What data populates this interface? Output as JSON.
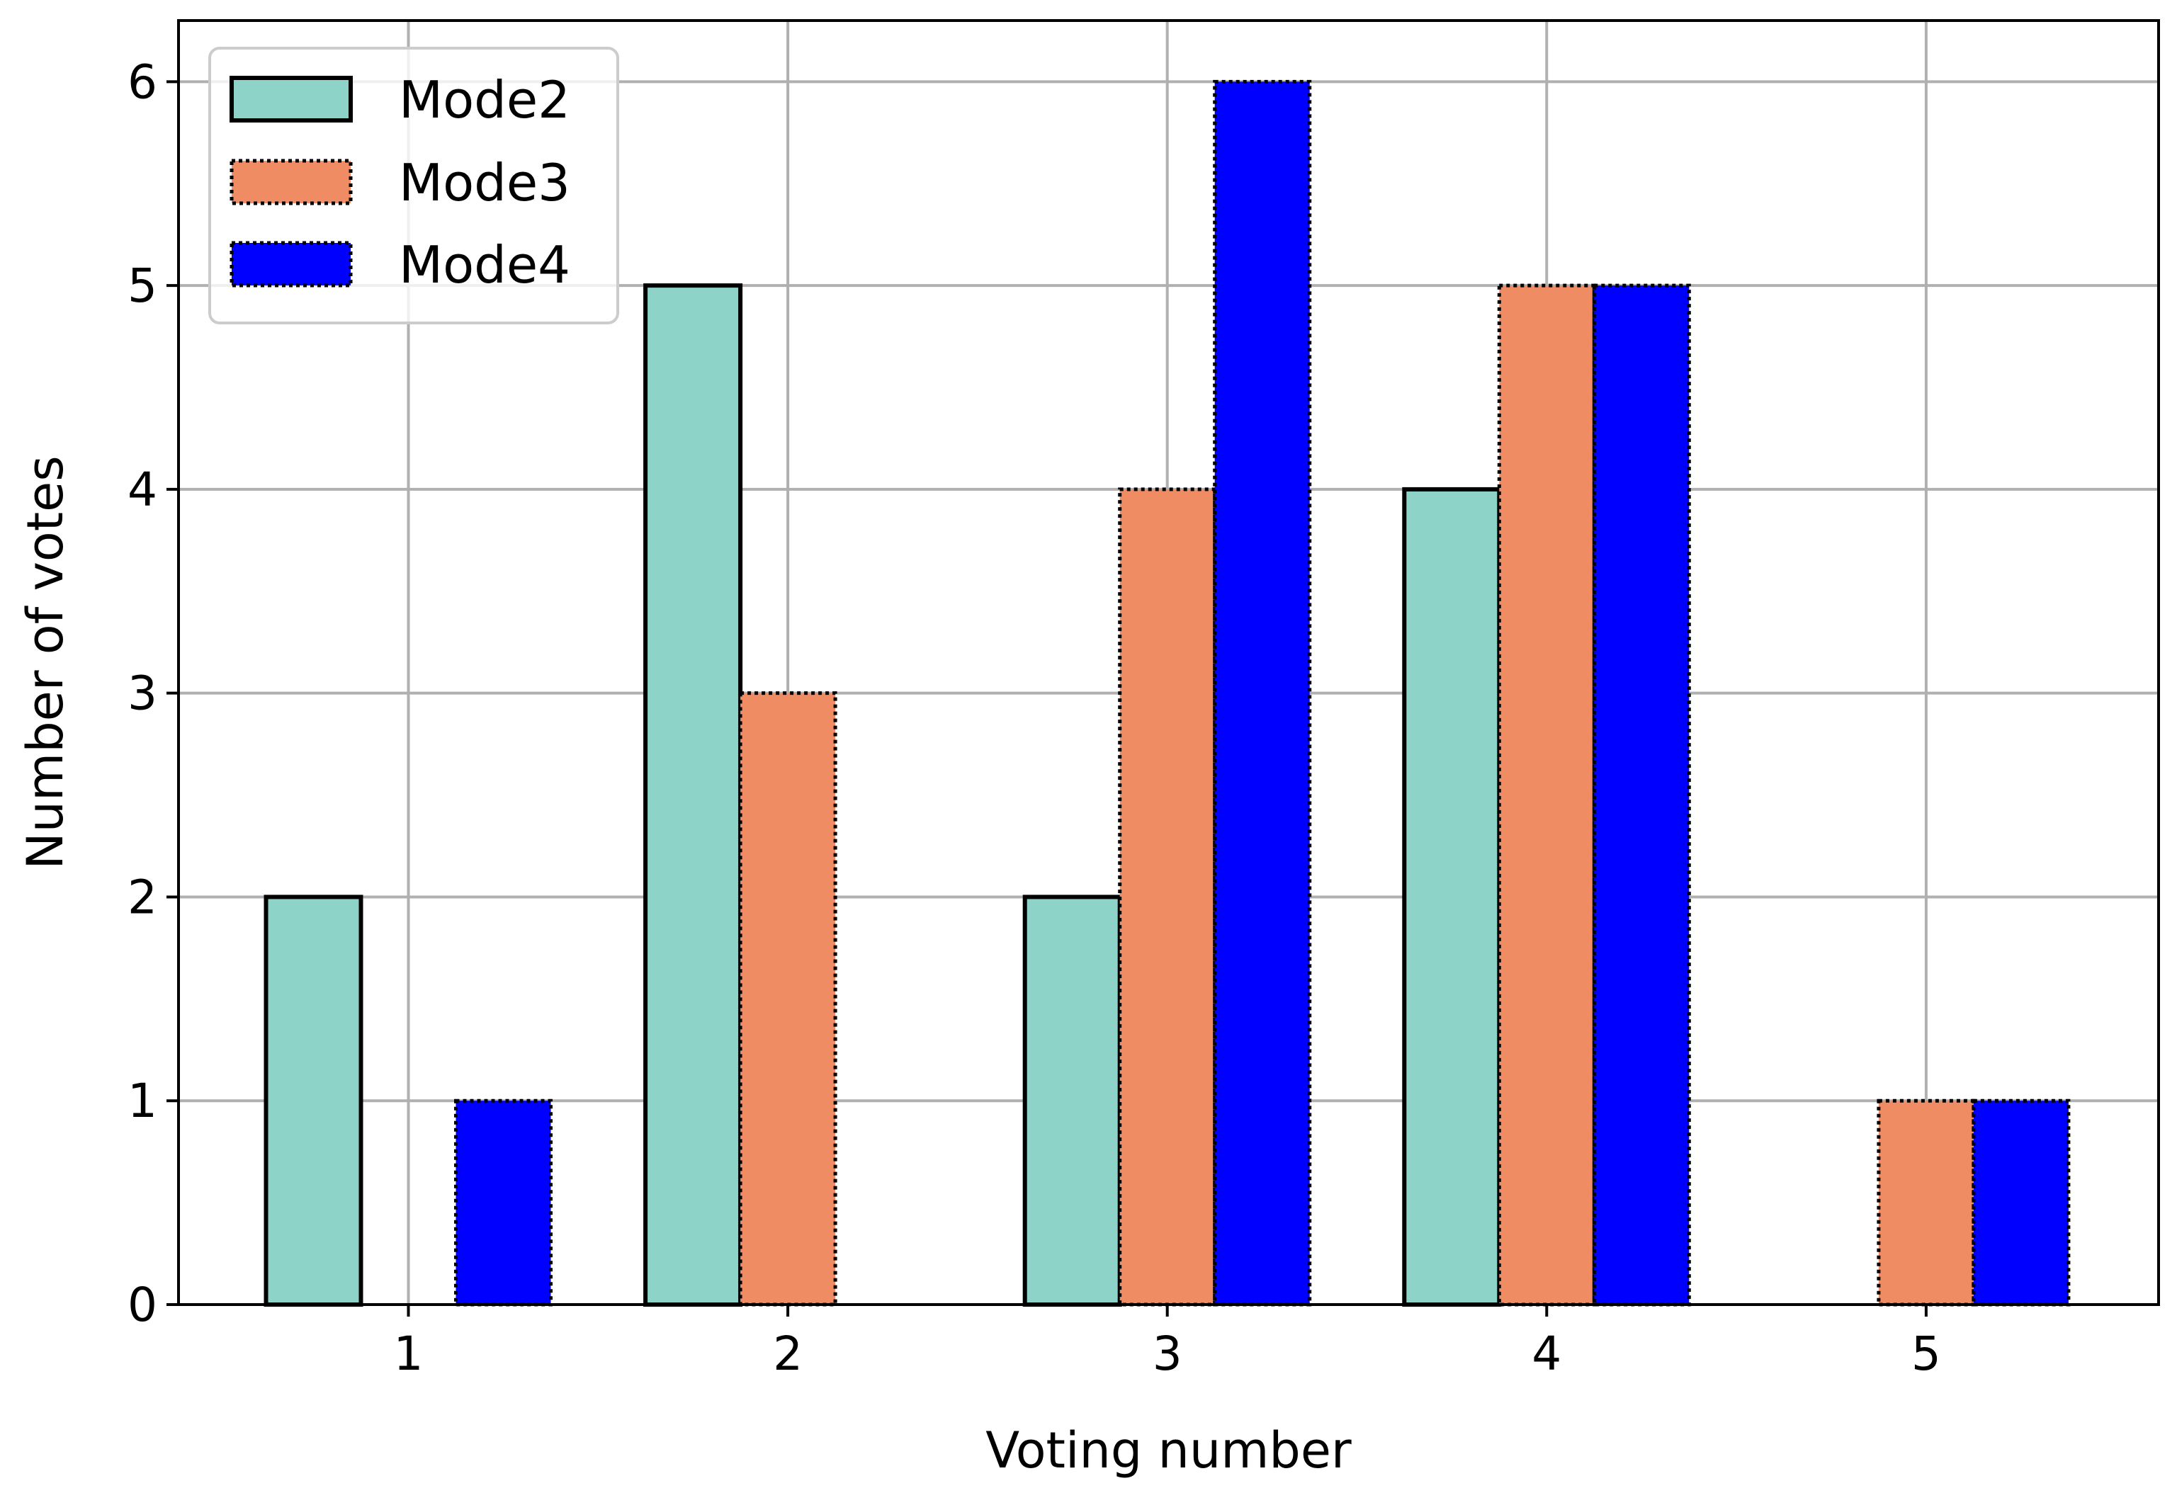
{
  "chart_data": {
    "type": "bar",
    "title": "",
    "xlabel": "Voting number",
    "ylabel": "Number of votes",
    "categories": [
      "1",
      "2",
      "3",
      "4",
      "5"
    ],
    "yticks": [
      "0",
      "1",
      "2",
      "3",
      "4",
      "5",
      "6"
    ],
    "ylim": [
      0,
      6.3
    ],
    "grid": true,
    "legend_position": "top-left",
    "series": [
      {
        "name": "Mode2",
        "values": [
          2,
          5,
          2,
          4,
          0
        ],
        "color": "#8dd3c7",
        "edge_color": "#000000",
        "edge_style": "solid"
      },
      {
        "name": "Mode3",
        "values": [
          0,
          3,
          4,
          5,
          1
        ],
        "color": "#f08c64",
        "edge_color": "#000000",
        "edge_style": "dotted"
      },
      {
        "name": "Mode4",
        "values": [
          1,
          0,
          6,
          5,
          1
        ],
        "color": "#0000ff",
        "edge_color": "#000000",
        "edge_style": "dotted"
      }
    ]
  }
}
